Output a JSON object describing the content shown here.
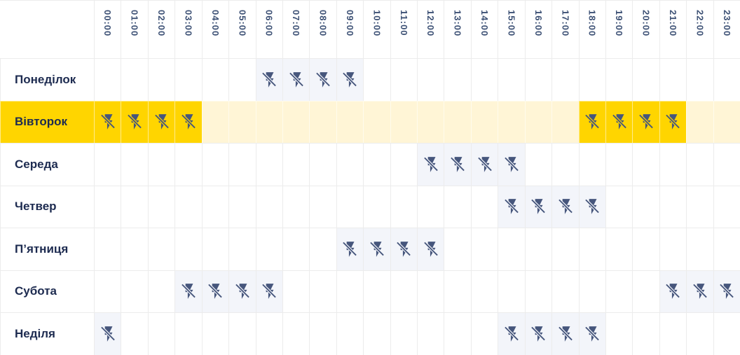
{
  "schedule": {
    "hours": [
      "00:00",
      "01:00",
      "02:00",
      "03:00",
      "04:00",
      "05:00",
      "06:00",
      "07:00",
      "08:00",
      "09:00",
      "10:00",
      "11:00",
      "12:00",
      "13:00",
      "14:00",
      "15:00",
      "16:00",
      "17:00",
      "18:00",
      "19:00",
      "20:00",
      "21:00",
      "22:00",
      "23:00"
    ],
    "days": [
      {
        "label": "Понеділок",
        "highlight": false,
        "outage_hours": [
          6,
          7,
          8,
          9
        ]
      },
      {
        "label": "Вівторок",
        "highlight": true,
        "outage_hours": [
          0,
          1,
          2,
          3,
          18,
          19,
          20,
          21
        ]
      },
      {
        "label": "Середа",
        "highlight": false,
        "outage_hours": [
          12,
          13,
          14,
          15
        ]
      },
      {
        "label": "Четвер",
        "highlight": false,
        "outage_hours": [
          15,
          16,
          17,
          18
        ]
      },
      {
        "label": "П’ятниця",
        "highlight": false,
        "outage_hours": [
          9,
          10,
          11,
          12
        ]
      },
      {
        "label": "Субота",
        "highlight": false,
        "outage_hours": [
          3,
          4,
          5,
          6,
          21,
          22,
          23
        ]
      },
      {
        "label": "Неділя",
        "highlight": false,
        "outage_hours": [
          0,
          15,
          16,
          17,
          18
        ]
      }
    ],
    "outage_icon": "power-off-icon"
  },
  "colors": {
    "highlight_strong": "#ffd500",
    "highlight_soft": "#fff5d6",
    "outage_cell_bg": "#f3f5fa",
    "icon": "#46567c",
    "day_label": "#1d2b50",
    "hour_label": "#3d5175",
    "gridline": "#ececec"
  },
  "chart_data": {
    "type": "heatmap",
    "title": "",
    "x": [
      "00:00",
      "01:00",
      "02:00",
      "03:00",
      "04:00",
      "05:00",
      "06:00",
      "07:00",
      "08:00",
      "09:00",
      "10:00",
      "11:00",
      "12:00",
      "13:00",
      "14:00",
      "15:00",
      "16:00",
      "17:00",
      "18:00",
      "19:00",
      "20:00",
      "21:00",
      "22:00",
      "23:00"
    ],
    "y": [
      "Понеділок",
      "Вівторок",
      "Середа",
      "Четвер",
      "П’ятниця",
      "Субота",
      "Неділя"
    ],
    "legend": "1 = power outage (crossed-out lightning icon), 0 = power on",
    "highlighted_row": "Вівторок",
    "values": [
      [
        0,
        0,
        0,
        0,
        0,
        0,
        1,
        1,
        1,
        1,
        0,
        0,
        0,
        0,
        0,
        0,
        0,
        0,
        0,
        0,
        0,
        0,
        0,
        0
      ],
      [
        1,
        1,
        1,
        1,
        0,
        0,
        0,
        0,
        0,
        0,
        0,
        0,
        0,
        0,
        0,
        0,
        0,
        0,
        1,
        1,
        1,
        1,
        0,
        0
      ],
      [
        0,
        0,
        0,
        0,
        0,
        0,
        0,
        0,
        0,
        0,
        0,
        0,
        1,
        1,
        1,
        1,
        0,
        0,
        0,
        0,
        0,
        0,
        0,
        0
      ],
      [
        0,
        0,
        0,
        0,
        0,
        0,
        0,
        0,
        0,
        0,
        0,
        0,
        0,
        0,
        0,
        1,
        1,
        1,
        1,
        0,
        0,
        0,
        0,
        0
      ],
      [
        0,
        0,
        0,
        0,
        0,
        0,
        0,
        0,
        0,
        1,
        1,
        1,
        1,
        0,
        0,
        0,
        0,
        0,
        0,
        0,
        0,
        0,
        0,
        0
      ],
      [
        0,
        0,
        0,
        1,
        1,
        1,
        1,
        0,
        0,
        0,
        0,
        0,
        0,
        0,
        0,
        0,
        0,
        0,
        0,
        0,
        0,
        1,
        1,
        1
      ],
      [
        1,
        0,
        0,
        0,
        0,
        0,
        0,
        0,
        0,
        0,
        0,
        0,
        0,
        0,
        0,
        1,
        1,
        1,
        1,
        0,
        0,
        0,
        0,
        0
      ]
    ]
  }
}
